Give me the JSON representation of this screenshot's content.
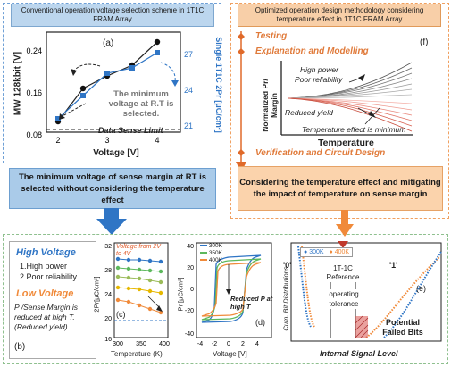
{
  "left_panel": {
    "header": "Conventional operation voltage selection scheme in 1T1C FRAM Array",
    "callout": "The minimum voltage of sense margin at RT is selected without considering the temperature effect",
    "panel_a": {
      "label": "(a)",
      "ylabel": "MW 128kbit [V]",
      "xlabel": "Voltage [V]",
      "right_label": "Single 1T1C 2Pr [μC/cm²]",
      "annotation": "The minimum voltage at R.T is selected.",
      "limit_label": "Data Sense Limit"
    }
  },
  "bottom_left": {
    "high_voltage_title": "High Voltage",
    "high_items": [
      "1.High power",
      "2.Poor reliability"
    ],
    "low_voltage_title": "Low Voltage",
    "low_text": "P /Sense Margin is reduced at high T. (Reduced yield)",
    "panel_b_label": "(b)",
    "panel_c": {
      "label": "(c)",
      "legend": "Voltage from 2V to 4V",
      "ylabel": "2Pr[μC/cm²]",
      "xlabel": "Temperature (K)"
    },
    "panel_d": {
      "label": "(d)",
      "legend": [
        "300K",
        "350K",
        "400K"
      ],
      "annotation": "Reduced P at high T",
      "ylabel": "Pr [μC/cm²]",
      "xlabel": "Voltage [V]"
    },
    "panel_e": {
      "label": "(e)",
      "legend": [
        "300K",
        "400K"
      ],
      "ylabel": "Cum. Bit Distributions",
      "xlabel": "Internal Signal Level",
      "zero_label": "'0'",
      "one_label": "'1'",
      "reference": "1T-1C Reference",
      "tolerance": "operating tolerance",
      "failed": "Potential Failed Bits"
    }
  },
  "right_panel": {
    "header": "Optimized operation design methodology considering temperature effect in 1T1C FRAM Array",
    "steps": [
      "Testing",
      "Explanation and Modelling",
      "Verification and Circuit Design"
    ],
    "panel_f": {
      "label": "(f)",
      "ylabel": "Normalized Pr/ Margin",
      "xlabel": "Temperature",
      "high_power": "High power",
      "poor_rel": "Poor reliability",
      "reduced_yield": "Reduced yield",
      "temp_min": "Temperature effect is minimum"
    },
    "callout": "Considering the temperature effect and mitigating the impact of temperature on sense margin"
  },
  "colors": {
    "blue_accent": "#2f75c5",
    "orange_accent": "#f08a3a",
    "green_dash": "#8fc08f"
  }
}
